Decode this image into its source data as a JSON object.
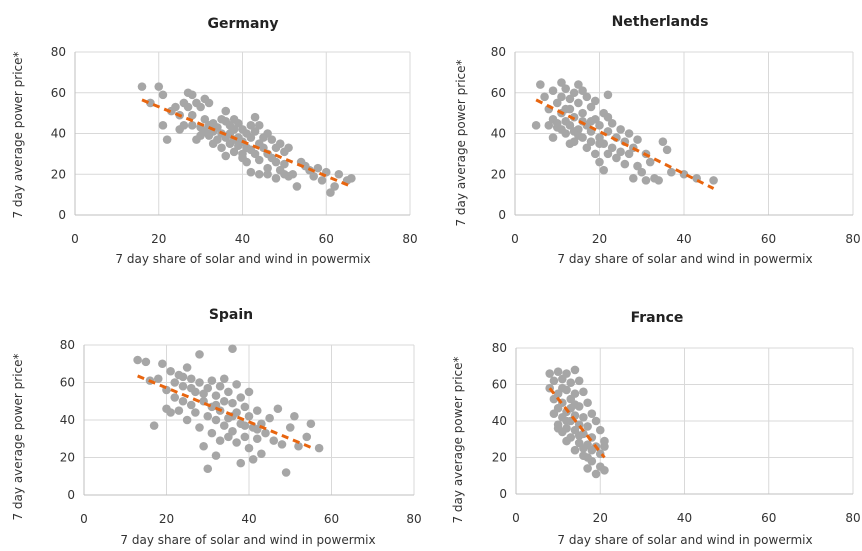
{
  "chart_data": [
    {
      "type": "scatter",
      "title": "Germany",
      "xlabel": "7 day share of solar and wind in powermix",
      "ylabel": "7 day average power price*",
      "xlim": [
        0,
        80
      ],
      "ylim": [
        0,
        80
      ],
      "xticks": [
        "0",
        "20",
        "40",
        "60",
        "80"
      ],
      "yticks": [
        "0",
        "20",
        "40",
        "60",
        "80"
      ],
      "grid": true,
      "trend": [
        [
          16,
          56.5
        ],
        [
          66,
          14
        ]
      ],
      "points": [
        [
          16,
          63
        ],
        [
          18,
          55
        ],
        [
          20,
          63
        ],
        [
          21,
          59
        ],
        [
          21,
          44
        ],
        [
          22,
          37
        ],
        [
          23,
          51
        ],
        [
          24,
          53
        ],
        [
          25,
          42
        ],
        [
          25,
          49
        ],
        [
          26,
          55
        ],
        [
          26,
          44
        ],
        [
          27,
          60
        ],
        [
          27,
          53
        ],
        [
          28,
          59
        ],
        [
          28,
          44
        ],
        [
          28,
          49
        ],
        [
          29,
          55
        ],
        [
          29,
          37
        ],
        [
          30,
          43
        ],
        [
          30,
          53
        ],
        [
          30,
          39
        ],
        [
          31,
          57
        ],
        [
          31,
          47
        ],
        [
          31,
          41
        ],
        [
          32,
          55
        ],
        [
          32,
          44
        ],
        [
          32,
          39
        ],
        [
          33,
          35
        ],
        [
          33,
          45
        ],
        [
          33,
          41
        ],
        [
          34,
          37
        ],
        [
          34,
          43
        ],
        [
          35,
          47
        ],
        [
          35,
          40
        ],
        [
          35,
          33
        ],
        [
          36,
          51
        ],
        [
          36,
          46
        ],
        [
          36,
          38
        ],
        [
          36,
          29
        ],
        [
          37,
          44
        ],
        [
          37,
          40
        ],
        [
          37,
          35
        ],
        [
          38,
          47
        ],
        [
          38,
          42
        ],
        [
          38,
          31
        ],
        [
          39,
          45
        ],
        [
          39,
          38
        ],
        [
          39,
          34
        ],
        [
          40,
          42
        ],
        [
          40,
          36
        ],
        [
          40,
          30
        ],
        [
          41,
          40
        ],
        [
          41,
          33
        ],
        [
          41,
          26
        ],
        [
          42,
          44
        ],
        [
          42,
          38
        ],
        [
          42,
          32
        ],
        [
          43,
          48
        ],
        [
          43,
          41
        ],
        [
          43,
          30
        ],
        [
          44,
          44
        ],
        [
          44,
          35
        ],
        [
          44,
          27
        ],
        [
          45,
          38
        ],
        [
          45,
          33
        ],
        [
          46,
          40
        ],
        [
          46,
          30
        ],
        [
          46,
          23
        ],
        [
          47,
          37
        ],
        [
          47,
          28
        ],
        [
          48,
          33
        ],
        [
          48,
          26
        ],
        [
          49,
          35
        ],
        [
          49,
          22
        ],
        [
          50,
          31
        ],
        [
          50,
          25
        ],
        [
          51,
          33
        ],
        [
          51,
          19
        ],
        [
          52,
          20
        ],
        [
          53,
          14
        ],
        [
          54,
          26
        ],
        [
          55,
          24
        ],
        [
          56,
          22
        ],
        [
          57,
          19
        ],
        [
          58,
          23
        ],
        [
          59,
          17
        ],
        [
          60,
          21
        ],
        [
          61,
          11
        ],
        [
          62,
          14
        ],
        [
          63,
          20
        ],
        [
          65,
          17
        ],
        [
          66,
          18
        ],
        [
          46,
          20
        ],
        [
          44,
          20
        ],
        [
          48,
          18
        ],
        [
          50,
          20
        ],
        [
          42,
          21
        ],
        [
          40,
          28
        ],
        [
          38,
          37
        ]
      ]
    },
    {
      "type": "scatter",
      "title": "Netherlands",
      "xlabel": "7 day share of solar and wind in powermix",
      "ylabel": "7 day average power price*",
      "xlim": [
        0,
        80
      ],
      "ylim": [
        0,
        80
      ],
      "xticks": [
        "0",
        "20",
        "40",
        "60",
        "80"
      ],
      "yticks": [
        "0",
        "20",
        "40",
        "60",
        "80"
      ],
      "grid": true,
      "trend": [
        [
          5,
          56.5
        ],
        [
          47,
          13
        ]
      ],
      "points": [
        [
          5,
          44
        ],
        [
          6,
          64
        ],
        [
          7,
          58
        ],
        [
          8,
          44
        ],
        [
          8,
          52
        ],
        [
          9,
          61
        ],
        [
          9,
          47
        ],
        [
          10,
          55
        ],
        [
          10,
          43
        ],
        [
          11,
          65
        ],
        [
          11,
          58
        ],
        [
          11,
          50
        ],
        [
          12,
          62
        ],
        [
          12,
          46
        ],
        [
          12,
          40
        ],
        [
          13,
          57
        ],
        [
          13,
          52
        ],
        [
          13,
          44
        ],
        [
          14,
          60
        ],
        [
          14,
          36
        ],
        [
          14,
          48
        ],
        [
          15,
          64
        ],
        [
          15,
          55
        ],
        [
          15,
          42
        ],
        [
          16,
          50
        ],
        [
          16,
          38
        ],
        [
          16,
          46
        ],
        [
          17,
          58
        ],
        [
          17,
          44
        ],
        [
          17,
          33
        ],
        [
          18,
          53
        ],
        [
          18,
          41
        ],
        [
          18,
          36
        ],
        [
          19,
          47
        ],
        [
          19,
          30
        ],
        [
          19,
          56
        ],
        [
          20,
          44
        ],
        [
          20,
          38
        ],
        [
          20,
          26
        ],
        [
          21,
          50
        ],
        [
          21,
          35
        ],
        [
          21,
          22
        ],
        [
          22,
          59
        ],
        [
          22,
          41
        ],
        [
          22,
          30
        ],
        [
          23,
          45
        ],
        [
          23,
          33
        ],
        [
          24,
          38
        ],
        [
          24,
          28
        ],
        [
          25,
          42
        ],
        [
          25,
          31
        ],
        [
          26,
          36
        ],
        [
          26,
          25
        ],
        [
          27,
          40
        ],
        [
          27,
          30
        ],
        [
          28,
          33
        ],
        [
          28,
          18
        ],
        [
          29,
          24
        ],
        [
          29,
          37
        ],
        [
          30,
          21
        ],
        [
          31,
          30
        ],
        [
          31,
          17
        ],
        [
          32,
          26
        ],
        [
          33,
          18
        ],
        [
          34,
          17
        ],
        [
          35,
          36
        ],
        [
          36,
          32
        ],
        [
          37,
          21
        ],
        [
          40,
          20
        ],
        [
          43,
          18
        ],
        [
          47,
          17
        ],
        [
          10,
          45
        ],
        [
          12,
          52
        ],
        [
          14,
          41
        ],
        [
          16,
          61
        ],
        [
          18,
          46
        ],
        [
          20,
          35
        ],
        [
          22,
          48
        ],
        [
          15,
          39
        ],
        [
          13,
          35
        ],
        [
          11,
          42
        ],
        [
          9,
          38
        ]
      ]
    },
    {
      "type": "scatter",
      "title": "Spain",
      "xlabel": "7 day share of solar and wind in powermix",
      "ylabel": "7 day average power price*",
      "xlim": [
        0,
        80
      ],
      "ylim": [
        0,
        80
      ],
      "xticks": [
        "0",
        "20",
        "40",
        "60",
        "80"
      ],
      "yticks": [
        "0",
        "20",
        "40",
        "60",
        "80"
      ],
      "grid": true,
      "trend": [
        [
          13,
          63.5
        ],
        [
          56,
          24.5
        ]
      ],
      "points": [
        [
          13,
          72
        ],
        [
          15,
          71
        ],
        [
          16,
          61
        ],
        [
          17,
          37
        ],
        [
          18,
          62
        ],
        [
          19,
          70
        ],
        [
          20,
          46
        ],
        [
          20,
          56
        ],
        [
          21,
          66
        ],
        [
          21,
          44
        ],
        [
          22,
          60
        ],
        [
          22,
          52
        ],
        [
          23,
          64
        ],
        [
          23,
          45
        ],
        [
          24,
          58
        ],
        [
          24,
          50
        ],
        [
          25,
          68
        ],
        [
          25,
          40
        ],
        [
          26,
          62
        ],
        [
          26,
          48
        ],
        [
          27,
          55
        ],
        [
          27,
          44
        ],
        [
          28,
          60
        ],
        [
          28,
          36
        ],
        [
          28,
          75
        ],
        [
          29,
          50
        ],
        [
          29,
          26
        ],
        [
          30,
          57
        ],
        [
          30,
          42
        ],
        [
          30,
          14
        ],
        [
          31,
          61
        ],
        [
          31,
          47
        ],
        [
          31,
          33
        ],
        [
          32,
          53
        ],
        [
          32,
          21
        ],
        [
          32,
          40
        ],
        [
          33,
          58
        ],
        [
          33,
          45
        ],
        [
          33,
          29
        ],
        [
          34,
          50
        ],
        [
          34,
          37
        ],
        [
          35,
          55
        ],
        [
          35,
          41
        ],
        [
          35,
          31
        ],
        [
          36,
          49
        ],
        [
          36,
          34
        ],
        [
          36,
          78
        ],
        [
          37,
          44
        ],
        [
          37,
          28
        ],
        [
          37,
          59
        ],
        [
          38,
          52
        ],
        [
          38,
          38
        ],
        [
          38,
          17
        ],
        [
          39,
          47
        ],
        [
          39,
          31
        ],
        [
          40,
          42
        ],
        [
          40,
          25
        ],
        [
          40,
          55
        ],
        [
          41,
          36
        ],
        [
          41,
          19
        ],
        [
          42,
          45
        ],
        [
          42,
          30
        ],
        [
          43,
          38
        ],
        [
          43,
          22
        ],
        [
          44,
          33
        ],
        [
          45,
          41
        ],
        [
          46,
          29
        ],
        [
          47,
          46
        ],
        [
          48,
          27
        ],
        [
          49,
          12
        ],
        [
          50,
          36
        ],
        [
          51,
          42
        ],
        [
          52,
          26
        ],
        [
          54,
          31
        ],
        [
          55,
          38
        ],
        [
          57,
          25
        ],
        [
          24,
          63
        ],
        [
          26,
          57
        ],
        [
          29,
          54
        ],
        [
          32,
          48
        ],
        [
          34,
          62
        ],
        [
          36,
          42
        ],
        [
          39,
          37
        ],
        [
          42,
          35
        ]
      ]
    },
    {
      "type": "scatter",
      "title": "France",
      "xlabel": "7 day share of solar and wind in powermix",
      "ylabel": "7 day average power price*",
      "xlim": [
        0,
        80
      ],
      "ylim": [
        0,
        80
      ],
      "xticks": [
        "0",
        "20",
        "40",
        "60",
        "80"
      ],
      "yticks": [
        "0",
        "20",
        "40",
        "60",
        "80"
      ],
      "grid": true,
      "trend": [
        [
          8,
          58
        ],
        [
          21,
          20
        ]
      ],
      "points": [
        [
          8,
          66
        ],
        [
          8,
          58
        ],
        [
          9,
          62
        ],
        [
          9,
          52
        ],
        [
          9,
          44
        ],
        [
          10,
          67
        ],
        [
          10,
          55
        ],
        [
          10,
          47
        ],
        [
          10,
          38
        ],
        [
          11,
          63
        ],
        [
          11,
          50
        ],
        [
          11,
          42
        ],
        [
          11,
          34
        ],
        [
          12,
          66
        ],
        [
          12,
          57
        ],
        [
          12,
          45
        ],
        [
          12,
          36
        ],
        [
          12,
          29
        ],
        [
          13,
          61
        ],
        [
          13,
          52
        ],
        [
          13,
          40
        ],
        [
          13,
          31
        ],
        [
          14,
          68
        ],
        [
          14,
          55
        ],
        [
          14,
          43
        ],
        [
          14,
          35
        ],
        [
          14,
          24
        ],
        [
          15,
          62
        ],
        [
          15,
          48
        ],
        [
          15,
          38
        ],
        [
          15,
          28
        ],
        [
          16,
          56
        ],
        [
          16,
          42
        ],
        [
          16,
          33
        ],
        [
          16,
          21
        ],
        [
          17,
          50
        ],
        [
          17,
          37
        ],
        [
          17,
          27
        ],
        [
          17,
          14
        ],
        [
          18,
          44
        ],
        [
          18,
          31
        ],
        [
          18,
          18
        ],
        [
          19,
          40
        ],
        [
          19,
          26
        ],
        [
          19,
          11
        ],
        [
          20,
          35
        ],
        [
          20,
          22
        ],
        [
          20,
          15
        ],
        [
          21,
          29
        ],
        [
          21,
          13
        ],
        [
          21,
          26
        ],
        [
          11,
          58
        ],
        [
          12,
          40
        ],
        [
          13,
          47
        ],
        [
          15,
          32
        ],
        [
          16,
          25
        ],
        [
          17,
          20
        ],
        [
          18,
          24
        ],
        [
          14,
          49
        ],
        [
          10,
          36
        ]
      ]
    }
  ]
}
